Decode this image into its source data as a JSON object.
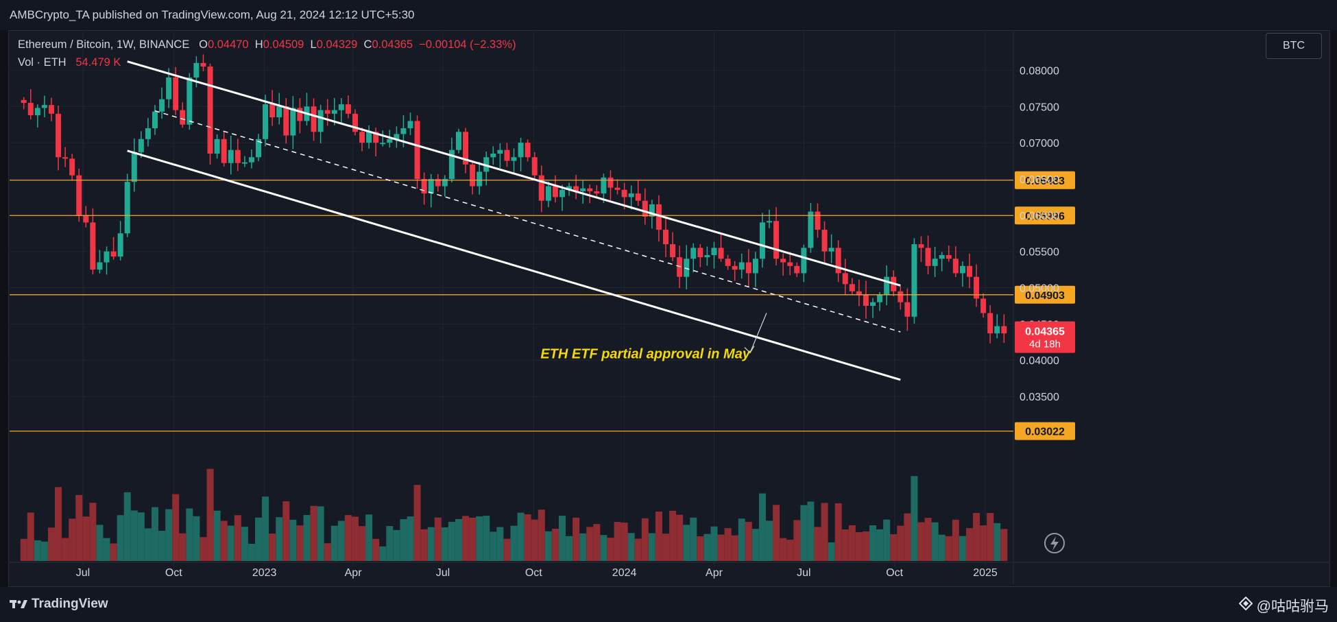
{
  "header": {
    "publisher_line": "AMBCrypto_TA published on TradingView.com, Aug 21, 2024 12:12 UTC+5:30"
  },
  "legend": {
    "symbol": "Ethereum / Bitcoin, 1W, BINANCE",
    "o_key": "O",
    "o": "0.04470",
    "h_key": "H",
    "h": "0.04509",
    "l_key": "L",
    "l": "0.04329",
    "c_key": "C",
    "c": "0.04365",
    "change": "−0.00104 (−2.33%)",
    "vol_label": "Vol · ETH",
    "vol_value": "54.479 K"
  },
  "currency_button": "BTC",
  "footer": {
    "brand": "TradingView",
    "watermark": "@咕咕驸马"
  },
  "colors": {
    "up": "#22ab94",
    "down": "#f23645",
    "up_volume": "#1e6b63",
    "down_volume": "#8f2d33",
    "level_line": "#f5a623",
    "channel": "#ffffff",
    "annotation": "#f5d90a"
  },
  "chart_data": {
    "type": "candlestick",
    "interval": "1W",
    "y_scale": "price (BTC)",
    "ylim": [
      0.0299,
      0.0825
    ],
    "yticks": [
      "0.08000",
      "0.07500",
      "0.07000",
      "0.06500",
      "0.06000",
      "0.05500",
      "0.05000",
      "0.04500",
      "0.04000",
      "0.03500"
    ],
    "x_ticks": [
      "Jul",
      "Oct",
      "2023",
      "Apr",
      "Jul",
      "Oct",
      "2024",
      "Apr",
      "Jul",
      "Oct",
      "2025"
    ],
    "x_tick_dates": [
      "2022-07-01",
      "2022-10-01",
      "2023-01-01",
      "2023-04-01",
      "2023-07-01",
      "2023-10-01",
      "2024-01-01",
      "2024-04-01",
      "2024-07-01",
      "2024-10-01",
      "2025-01-01"
    ],
    "first_candle_date": "2022-05-02",
    "candle_interval_days": 7,
    "closes": [
      0.0755,
      0.0738,
      0.0748,
      0.0752,
      0.074,
      0.068,
      0.0678,
      0.0655,
      0.06,
      0.059,
      0.0525,
      0.0535,
      0.055,
      0.0543,
      0.0575,
      0.0646,
      0.0687,
      0.0705,
      0.072,
      0.0743,
      0.076,
      0.079,
      0.0745,
      0.0725,
      0.079,
      0.081,
      0.0805,
      0.0685,
      0.0705,
      0.0672,
      0.069,
      0.0672,
      0.0673,
      0.068,
      0.0705,
      0.0753,
      0.0735,
      0.075,
      0.071,
      0.0748,
      0.073,
      0.075,
      0.0715,
      0.0745,
      0.074,
      0.0745,
      0.0753,
      0.074,
      0.0715,
      0.07,
      0.0715,
      0.07,
      0.07,
      0.0705,
      0.0712,
      0.072,
      0.073,
      0.065,
      0.063,
      0.065,
      0.064,
      0.065,
      0.069,
      0.0715,
      0.067,
      0.064,
      0.066,
      0.068,
      0.0685,
      0.069,
      0.0675,
      0.068,
      0.07,
      0.068,
      0.0655,
      0.062,
      0.064,
      0.0625,
      0.0635,
      0.064,
      0.0633,
      0.0637,
      0.0633,
      0.063,
      0.0652,
      0.0638,
      0.0635,
      0.0625,
      0.063,
      0.062,
      0.0598,
      0.0615,
      0.058,
      0.056,
      0.0542,
      0.0515,
      0.054,
      0.0555,
      0.0542,
      0.0545,
      0.0555,
      0.054,
      0.053,
      0.0525,
      0.0535,
      0.052,
      0.054,
      0.059,
      0.0592,
      0.054,
      0.0535,
      0.053,
      0.052,
      0.0555,
      0.0605,
      0.058,
      0.055,
      0.0555,
      0.052,
      0.0505,
      0.0495,
      0.049,
      0.0475,
      0.048,
      0.049,
      0.0515,
      0.0495,
      0.048,
      0.046,
      0.056,
      0.0555,
      0.053,
      0.054,
      0.0545,
      0.054,
      0.052,
      0.053,
      0.0515,
      0.0485,
      0.0465,
      0.0437,
      0.0447,
      0.0437
    ],
    "volume_label": "Vol · ETH",
    "last_volume": "54.479 K",
    "last_price": "0.04365",
    "last_candle_countdown": "4d 18h",
    "horizontal_levels": [
      {
        "price": 0.06483,
        "label": "0.06483"
      },
      {
        "price": 0.05996,
        "label": "0.05996"
      },
      {
        "price": 0.04903,
        "label": "0.04903"
      },
      {
        "price": 0.03022,
        "label": "0.03022"
      }
    ],
    "channel_lines": [
      {
        "name": "upper",
        "style": "solid",
        "from": {
          "date": "2022-08-15",
          "price": 0.0812
        },
        "to": {
          "date": "2024-10-07",
          "price": 0.0503
        }
      },
      {
        "name": "lower",
        "style": "solid",
        "from": {
          "date": "2022-08-15",
          "price": 0.0689
        },
        "to": {
          "date": "2024-10-07",
          "price": 0.0373
        }
      },
      {
        "name": "mid",
        "style": "dashed",
        "from": {
          "date": "2022-09-12",
          "price": 0.0744
        },
        "to": {
          "date": "2024-10-07",
          "price": 0.0439
        }
      }
    ],
    "annotation": {
      "text": "ETH ETF partial approval in May",
      "date": "2024-05-20",
      "price": 0.0465
    },
    "grid": true,
    "legend_position": "top-left"
  }
}
